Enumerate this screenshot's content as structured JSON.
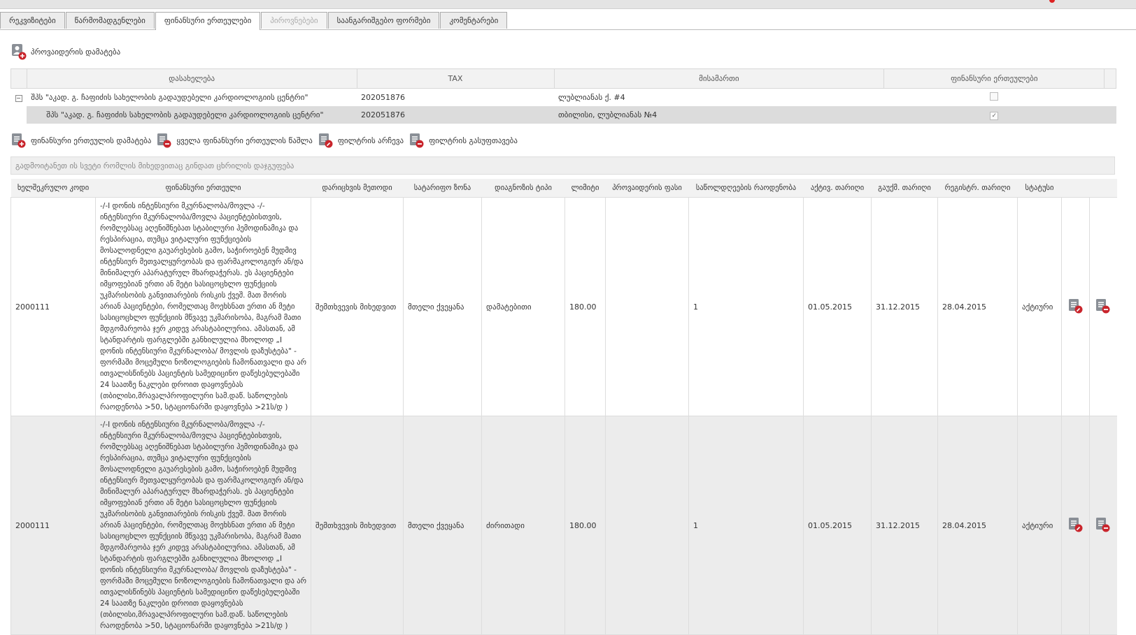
{
  "tabs": [
    "რეკვიზიტები",
    "წარმომადგენლები",
    "ფინანსური ერთეულები",
    "პიროვნებები",
    "საანგარიშგებო ფორმები",
    "კომენტარები"
  ],
  "active_tab": 2,
  "disabled_tab": 3,
  "add_provider": "პროვაიდერის დამატება",
  "providers": {
    "columns": [
      "დასახელება",
      "TAX",
      "მისამართი",
      "ფინანსური ერთეულები"
    ],
    "rows": [
      {
        "name": "შპს \"აკად. გ. ჩაფიძის სახელობის გადაუდებელი კარდიოლოგიის ცენტრი\"",
        "tax": "202051876",
        "address": "ლუბლიანას ქ. #4",
        "checked": false
      },
      {
        "name": "შპს \"აკად. გ. ჩაფიძის სახელობის გადაუდებელი კარდიოლოგიის ცენტრი\"",
        "tax": "202051876",
        "address": "თბილისი, ლუბლიანას №4",
        "checked": true
      }
    ]
  },
  "toolbar": [
    "ფინანსური ერთეულის დამატება",
    "ყველა ფინანსური ერთეულის წაშლა",
    "ფილტრის არჩევა",
    "ფილტრის გასუფთავება"
  ],
  "group_hint": "გადმოიტანეთ ის სვეტი რომლის მიხედვითაც გინდათ ცხრილის დაჯგუფება",
  "grid": {
    "columns": [
      "ხელშეკრულო კოდი",
      "ფინანსური ერთეული",
      "დარიცხვის მეთოდი",
      "სატარიფო ზონა",
      "დიაგნოზის ტიპი",
      "ლიმიტი",
      "პროვაიდერის ფასი",
      "საწოლდღეების რაოდენობა",
      "აქტივ. თარიღი",
      "გაუქმ. თარიღი",
      "რეგისტრ. თარიღი",
      "სტატუსი"
    ],
    "rows": [
      {
        "code": "2000111",
        "unit": "-/-I დონის ინტენსიური მკურნალობა/მოვლა -/- ინტენსიური მკურნალობა/მოვლა პაციენტებისთვის, რომლებსაც აღენიშნებათ სტაბილური ჰემოდინამიკა და რესპირაცია, თუმცა ვიტალური ფუნქციების მოსალოდნელი გაუარესების გამო, საჭიროებენ მუდმივ ინტენსიურ მეთვალყურეობას და ფარმაკოლოგიურ ან/და მინიმალურ აპარატურულ მხარდაჭერას. ეს პაციენტები იმყოფებიან ერთი ან მეტი სასიცოცხლო ფუნქციის უკმარისობის განვითარების რისკის ქვეშ. მათ შორის არიან პაციენტები, რომელთაც მოეხსნათ ერთი ან მეტი სასიცოცხლო ფუნქციის მწვავე უკმარისობა, მაგრამ მათი მდგომარეობა ჯერ კიდევ არასტაბილურია. ამასთან, ამ სტანდარტის ფარგლებში განხილულია მხოლოდ „I დონის ინტენსიური მკურნალობა/ მოვლის დაზუსტება\" - ფორმაში მოცემული ნოზოლოგიების ჩამონათვალი და არ ითვალისწინებს პაციენტის სამედიცინო დაწესებულებაში 24 საათზე ნაკლები დროით დაყოვნებას (თბილისი,მრავალპროფილური სამ.დაწ. საწოლების რაოდენობა >50, სტაციონარში დაყოვნება >21ს/დ )",
        "method": "შემთხვევის მიხედვით",
        "zone": "მთელი ქვეყანა",
        "diag": "დამატებითი",
        "limit": "180.00",
        "beds": "1",
        "active": "01.05.2015",
        "cancel": "31.12.2015",
        "reg": "28.04.2015",
        "status": "აქტიური"
      },
      {
        "code": "2000111",
        "unit": "-/-I დონის ინტენსიური მკურნალობა/მოვლა -/- ინტენსიური მკურნალობა/მოვლა პაციენტებისთვის, რომლებსაც აღენიშნებათ სტაბილური ჰემოდინამიკა და რესპირაცია, თუმცა ვიტალური ფუნქციების მოსალოდნელი გაუარესების გამო, საჭიროებენ მუდმივ ინტენსიურ მეთვალყურეობას და ფარმაკოლოგიურ ან/და მინიმალურ აპარატურულ მხარდაჭერას. ეს პაციენტები იმყოფებიან ერთი ან მეტი სასიცოცხლო ფუნქციის უკმარისობის განვითარების რისკის ქვეშ. მათ შორის არიან პაციენტები, რომელთაც მოეხსნათ ერთი ან მეტი სასიცოცხლო ფუნქციის მწვავე უკმარისობა, მაგრამ მათი მდგომარეობა ჯერ კიდევ არასტაბილურია. ამასთან, ამ სტანდარტის ფარგლებში განხილულია მხოლოდ „I დონის ინტენსიური მკურნალობა/ მოვლის დაზუსტება\" - ფორმაში მოცემული ნოზოლოგიების ჩამონათვალი და არ ითვალისწინებს პაციენტის სამედიცინო დაწესებულებაში 24 საათზე ნაკლები დროით დაყოვნებას (თბილისი,მრავალპროფილური სამ.დაწ. საწოლების რაოდენობა >50, სტაციონარში დაყოვნება >21ს/დ )",
        "method": "შემთხვევის მიხედვით",
        "zone": "მთელი ქვეყანა",
        "diag": "ძირითადი",
        "limit": "180.00",
        "beds": "1",
        "active": "01.05.2015",
        "cancel": "31.12.2015",
        "reg": "28.04.2015",
        "status": "აქტიური"
      }
    ]
  }
}
